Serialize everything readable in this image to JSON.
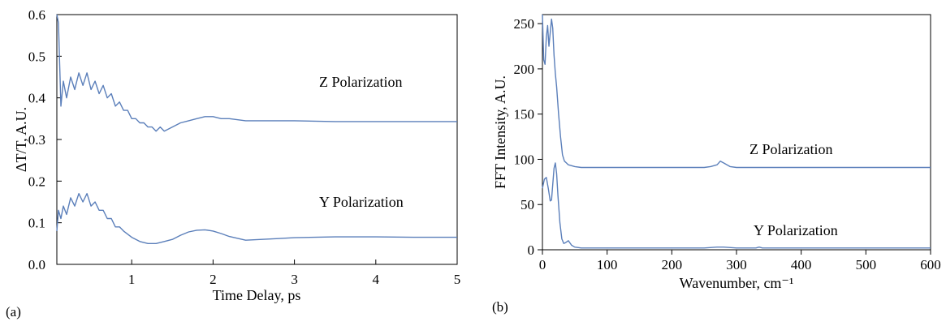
{
  "colors": {
    "series": "#5b7fba",
    "axis": "#000000"
  },
  "chart_data": [
    {
      "type": "line",
      "panel_label": "(a)",
      "xlabel": "Time Delay, ps",
      "ylabel": "ΔT/T, A.U.",
      "xlim": [
        0.08,
        5
      ],
      "ylim": [
        0,
        0.6
      ],
      "xticks": [
        1,
        2,
        3,
        4,
        5
      ],
      "yticks": [
        0.0,
        0.1,
        0.2,
        0.3,
        0.4,
        0.5,
        0.6
      ],
      "ytick_labels": [
        "0.0",
        "0.1",
        "0.2",
        "0.3",
        "0.4",
        "0.5",
        "0.6"
      ],
      "grid": false,
      "annotations": [
        "Z Polarization",
        "Y Polarization"
      ],
      "series": [
        {
          "name": "Z Polarization",
          "x": [
            0.08,
            0.1,
            0.13,
            0.16,
            0.2,
            0.25,
            0.3,
            0.35,
            0.4,
            0.45,
            0.5,
            0.55,
            0.6,
            0.65,
            0.7,
            0.75,
            0.8,
            0.85,
            0.9,
            0.95,
            1.0,
            1.05,
            1.1,
            1.15,
            1.2,
            1.25,
            1.3,
            1.35,
            1.4,
            1.5,
            1.6,
            1.7,
            1.8,
            1.9,
            2.0,
            2.1,
            2.2,
            2.4,
            2.6,
            2.8,
            3.0,
            3.5,
            4.0,
            4.5,
            5.0
          ],
          "y": [
            0.6,
            0.58,
            0.38,
            0.44,
            0.4,
            0.45,
            0.42,
            0.46,
            0.43,
            0.46,
            0.42,
            0.44,
            0.41,
            0.43,
            0.4,
            0.41,
            0.38,
            0.39,
            0.37,
            0.37,
            0.35,
            0.35,
            0.34,
            0.34,
            0.33,
            0.33,
            0.32,
            0.33,
            0.32,
            0.33,
            0.34,
            0.345,
            0.35,
            0.355,
            0.355,
            0.35,
            0.35,
            0.345,
            0.345,
            0.345,
            0.345,
            0.343,
            0.343,
            0.343,
            0.343
          ]
        },
        {
          "name": "Y Polarization",
          "x": [
            0.08,
            0.1,
            0.13,
            0.16,
            0.2,
            0.25,
            0.3,
            0.35,
            0.4,
            0.45,
            0.5,
            0.55,
            0.6,
            0.65,
            0.7,
            0.75,
            0.8,
            0.85,
            0.9,
            1.0,
            1.1,
            1.2,
            1.3,
            1.4,
            1.5,
            1.6,
            1.7,
            1.8,
            1.9,
            2.0,
            2.1,
            2.2,
            2.4,
            2.6,
            2.8,
            3.0,
            3.5,
            4.0,
            4.5,
            5.0
          ],
          "y": [
            0.08,
            0.13,
            0.11,
            0.14,
            0.12,
            0.16,
            0.14,
            0.17,
            0.15,
            0.17,
            0.14,
            0.15,
            0.13,
            0.13,
            0.11,
            0.11,
            0.09,
            0.09,
            0.08,
            0.065,
            0.055,
            0.05,
            0.05,
            0.055,
            0.06,
            0.07,
            0.078,
            0.082,
            0.083,
            0.08,
            0.074,
            0.067,
            0.058,
            0.06,
            0.062,
            0.064,
            0.066,
            0.066,
            0.065,
            0.065
          ]
        }
      ]
    },
    {
      "type": "line",
      "panel_label": "(b)",
      "xlabel": "Wavenumber, cm⁻¹",
      "ylabel": "FFT Intensity, A.U.",
      "xlim": [
        0,
        600
      ],
      "ylim": [
        0,
        260
      ],
      "xticks": [
        0,
        100,
        200,
        300,
        400,
        500,
        600
      ],
      "yticks": [
        0,
        50,
        100,
        150,
        200,
        250
      ],
      "grid": false,
      "annotations": [
        "Z Polarization",
        "Y Polarization"
      ],
      "series": [
        {
          "name": "Z Polarization",
          "x": [
            0,
            2,
            4,
            6,
            8,
            10,
            12,
            14,
            16,
            18,
            20,
            22,
            25,
            28,
            31,
            34,
            37,
            40,
            45,
            50,
            60,
            80,
            100,
            150,
            200,
            250,
            260,
            270,
            275,
            280,
            290,
            300,
            350,
            400,
            450,
            500,
            550,
            600
          ],
          "y": [
            260,
            210,
            205,
            235,
            248,
            225,
            240,
            255,
            245,
            215,
            195,
            180,
            150,
            125,
            105,
            98,
            96,
            94,
            93,
            92,
            91,
            91,
            91,
            91,
            91,
            91,
            92,
            94,
            98,
            96,
            92,
            91,
            91,
            91,
            91,
            91,
            91,
            91
          ]
        },
        {
          "name": "Y Polarization",
          "x": [
            0,
            3,
            6,
            9,
            12,
            14,
            16,
            18,
            20,
            22,
            24,
            27,
            30,
            33,
            36,
            40,
            45,
            50,
            60,
            80,
            100,
            150,
            200,
            250,
            270,
            280,
            300,
            330,
            335,
            340,
            350,
            400,
            450,
            500,
            550,
            600
          ],
          "y": [
            68,
            78,
            80,
            68,
            54,
            55,
            72,
            90,
            96,
            84,
            60,
            30,
            12,
            7,
            8,
            10,
            5,
            3,
            2,
            2,
            2,
            2,
            2,
            2,
            3,
            3,
            2,
            2,
            3,
            2,
            2,
            2,
            2,
            2,
            2,
            2
          ]
        }
      ]
    }
  ]
}
